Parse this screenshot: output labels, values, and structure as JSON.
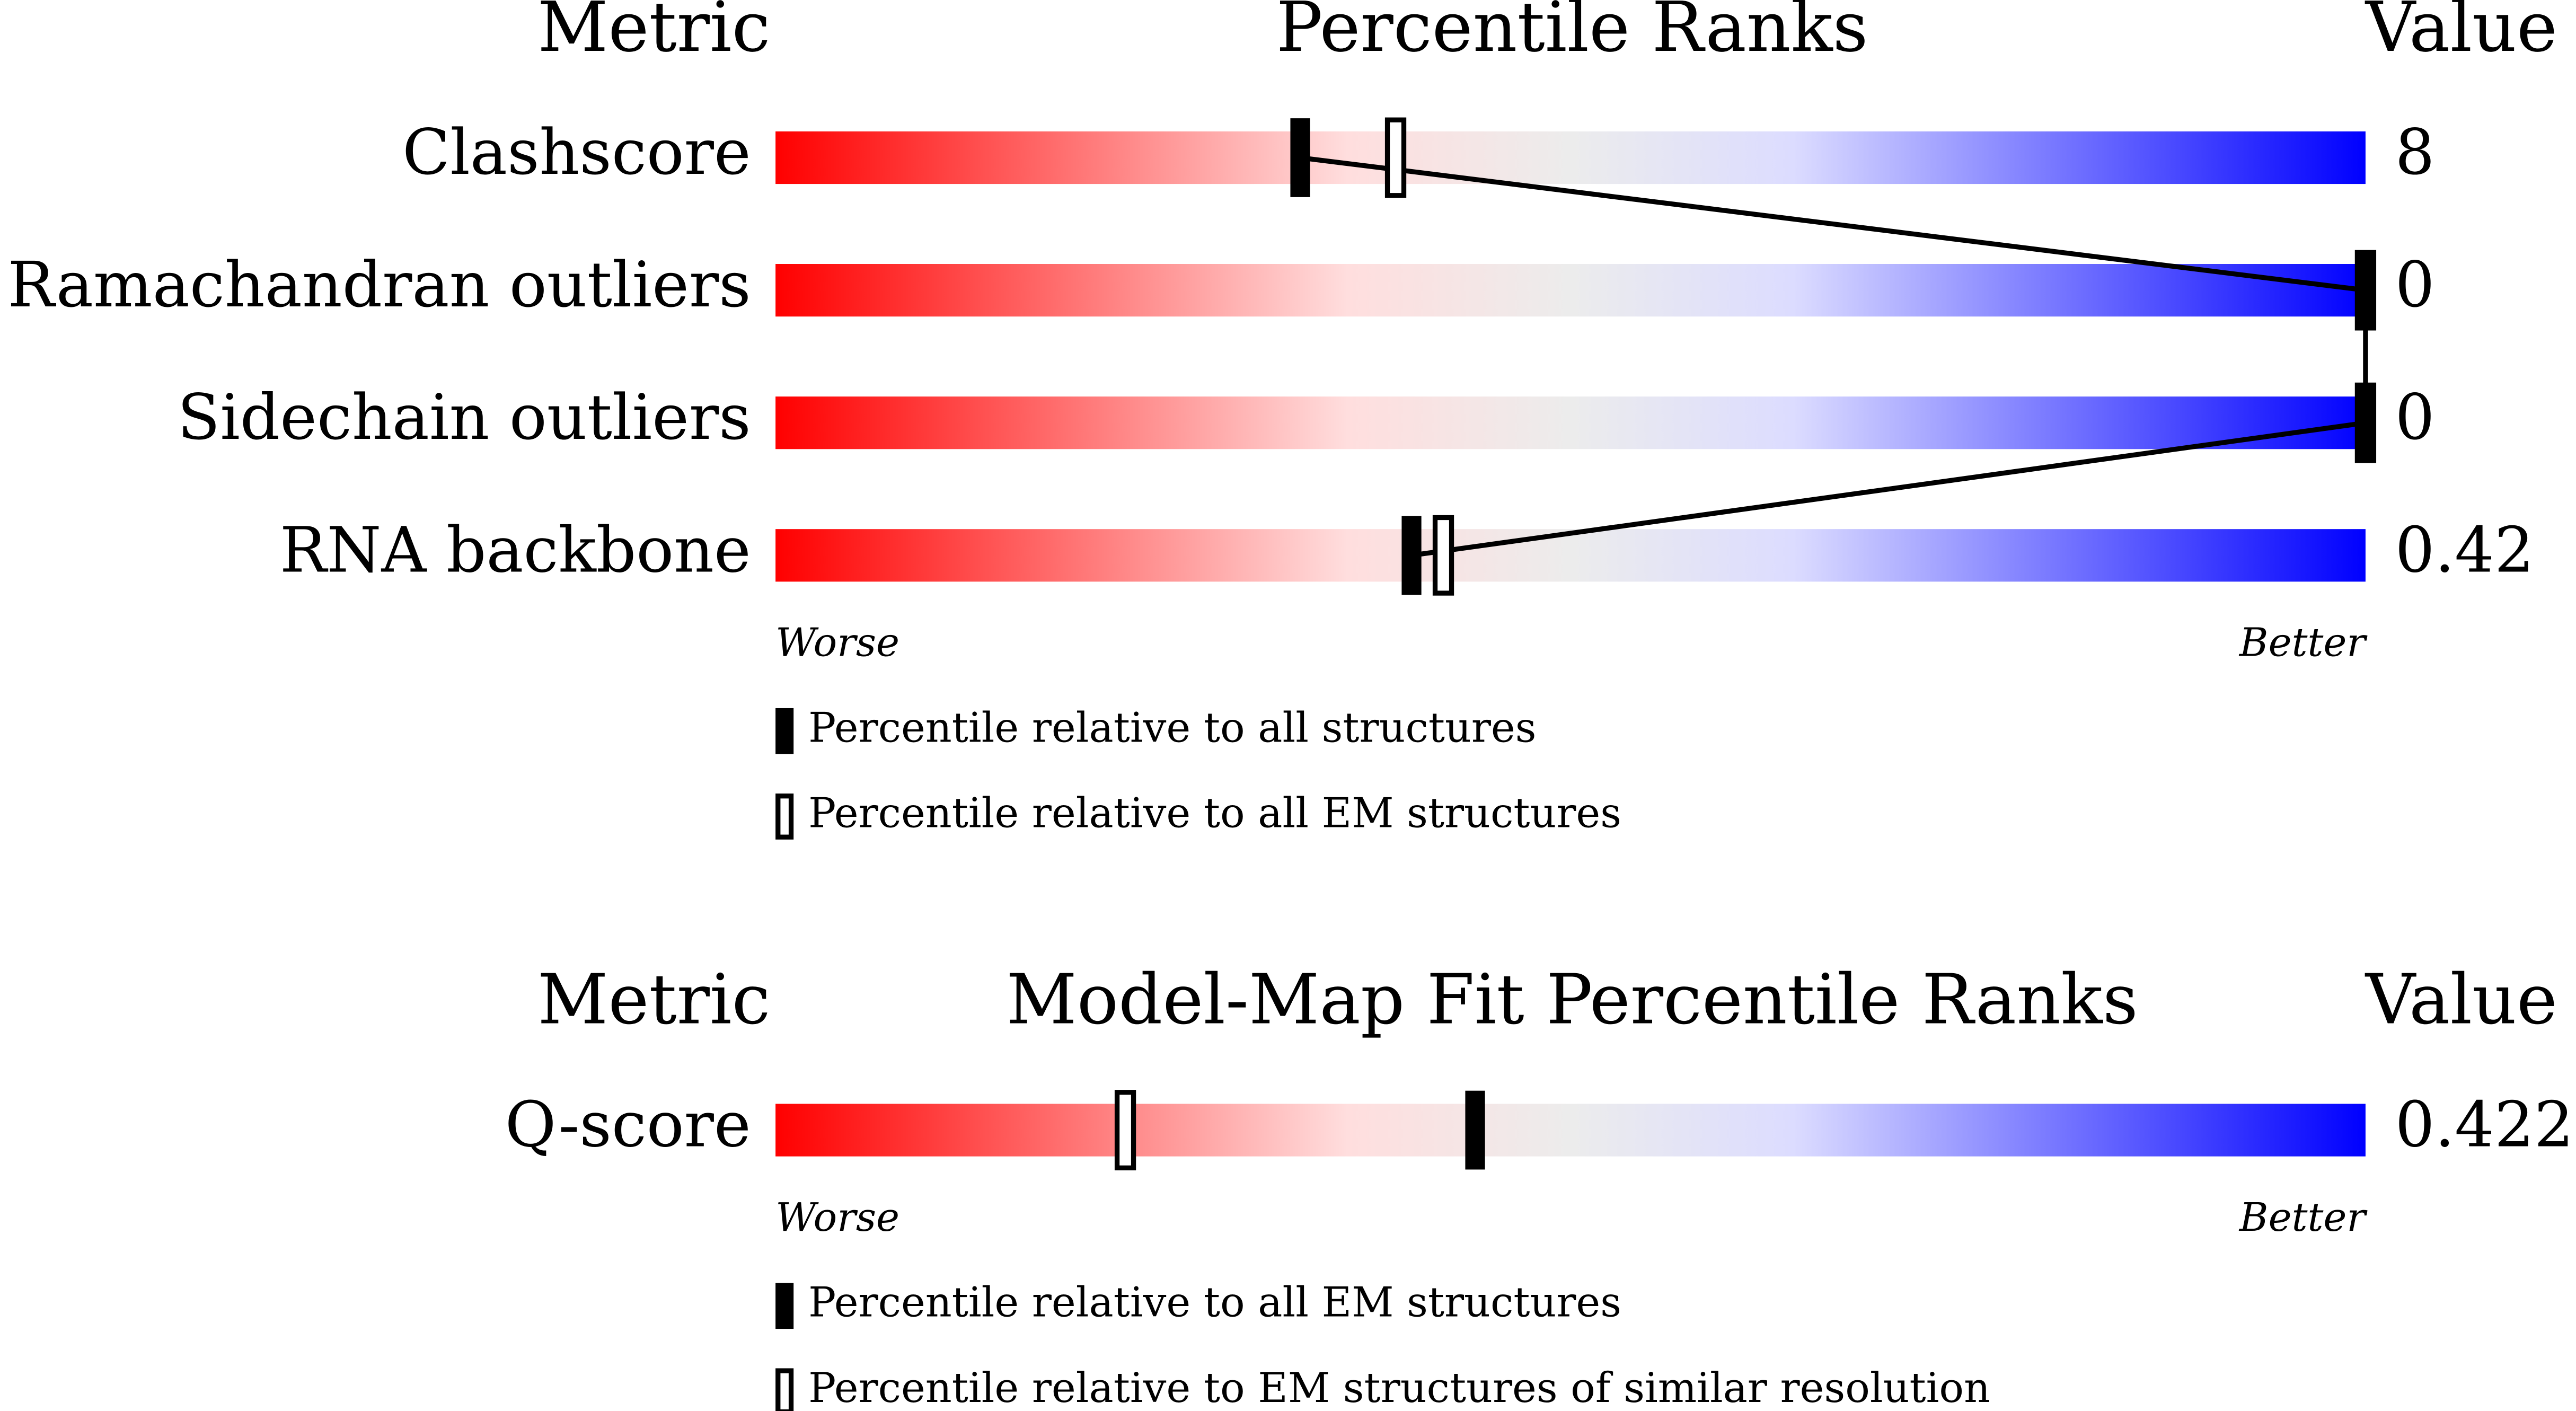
{
  "chart_data": [
    {
      "type": "percentile-slider",
      "column_headers": {
        "metric": "Metric",
        "title": "Percentile Ranks",
        "value": "Value"
      },
      "xlim": [
        0,
        100
      ],
      "metrics": [
        "Clashscore",
        "Ramachandran outliers",
        "Sidechain outliers",
        "RNA backbone"
      ],
      "metric_values": [
        8,
        0,
        0,
        0.42
      ],
      "series": [
        {
          "name": "Percentile relative to all structures",
          "style": "filled",
          "values": [
            33,
            100,
            100,
            40
          ]
        },
        {
          "name": "Percentile relative to all EM structures",
          "style": "open",
          "values": [
            39,
            100,
            100,
            42
          ]
        }
      ],
      "axis_labels": {
        "low": "Worse",
        "high": "Better"
      }
    },
    {
      "type": "percentile-slider",
      "column_headers": {
        "metric": "Metric",
        "title": "Model-Map Fit Percentile Ranks",
        "value": "Value"
      },
      "xlim": [
        0,
        100
      ],
      "metrics": [
        "Q-score"
      ],
      "metric_values": [
        0.422
      ],
      "series": [
        {
          "name": "Percentile relative to all EM structures",
          "style": "filled",
          "values": [
            44
          ]
        },
        {
          "name": "Percentile relative to EM structures of similar resolution",
          "style": "open",
          "values": [
            22
          ]
        }
      ],
      "axis_labels": {
        "low": "Worse",
        "high": "Better"
      }
    }
  ]
}
